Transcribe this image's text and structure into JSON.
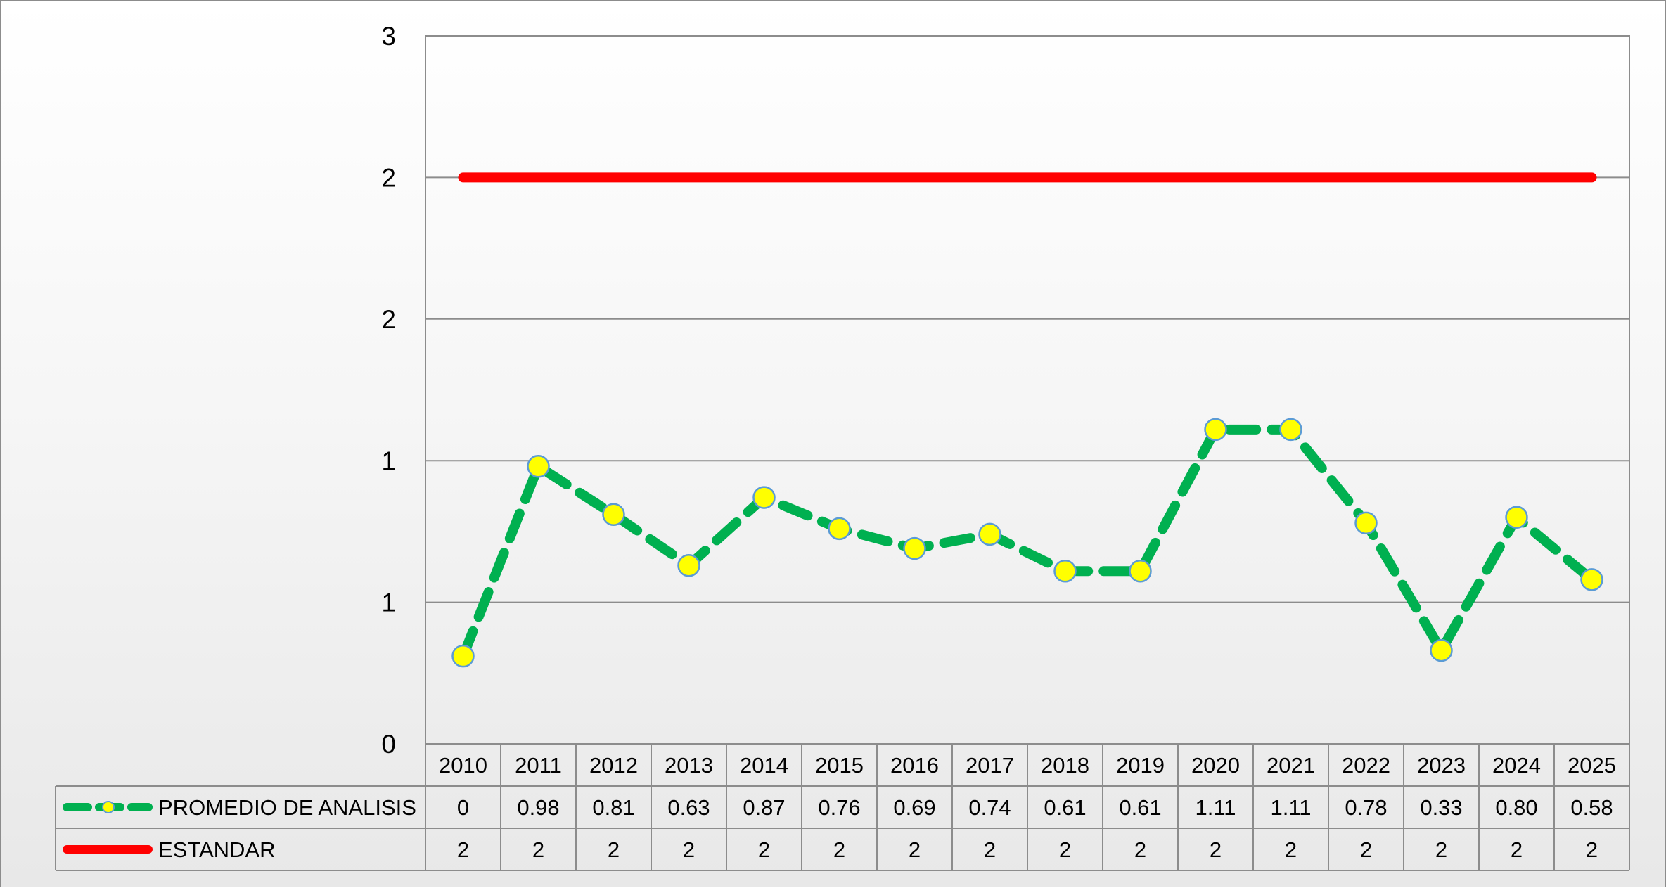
{
  "chart_data": {
    "type": "line",
    "categories": [
      "2010",
      "2011",
      "2012",
      "2013",
      "2014",
      "2015",
      "2016",
      "2017",
      "2018",
      "2019",
      "2020",
      "2021",
      "2022",
      "2023",
      "2024",
      "2025"
    ],
    "y_tick_labels": [
      "0",
      "1",
      "1",
      "2",
      "2",
      "3"
    ],
    "ylim": [
      0,
      2.5
    ],
    "grid": true,
    "legend": "data-table",
    "series": [
      {
        "name": "PROMEDIO DE ANALISIS",
        "values": [
          0.31,
          0.98,
          0.81,
          0.63,
          0.87,
          0.76,
          0.69,
          0.74,
          0.61,
          0.61,
          1.11,
          1.11,
          0.78,
          0.33,
          0.8,
          0.58
        ],
        "table_labels": [
          "0",
          "0.98",
          "0.81",
          "0.63",
          "0.87",
          "0.76",
          "0.69",
          "0.74",
          "0.61",
          "0.61",
          "1.11",
          "1.11",
          "0.78",
          "0.33",
          "0.80",
          "0.58"
        ],
        "line_color": "#00b050",
        "marker_color": "#ffff00",
        "marker_edge": "#5b9bd5",
        "style": "dashed"
      },
      {
        "name": "ESTANDAR",
        "values": [
          2,
          2,
          2,
          2,
          2,
          2,
          2,
          2,
          2,
          2,
          2,
          2,
          2,
          2,
          2,
          2
        ],
        "table_labels": [
          "2",
          "2",
          "2",
          "2",
          "2",
          "2",
          "2",
          "2",
          "2",
          "2",
          "2",
          "2",
          "2",
          "2",
          "2",
          "2"
        ],
        "line_color": "#ff0000",
        "style": "solid"
      }
    ]
  }
}
